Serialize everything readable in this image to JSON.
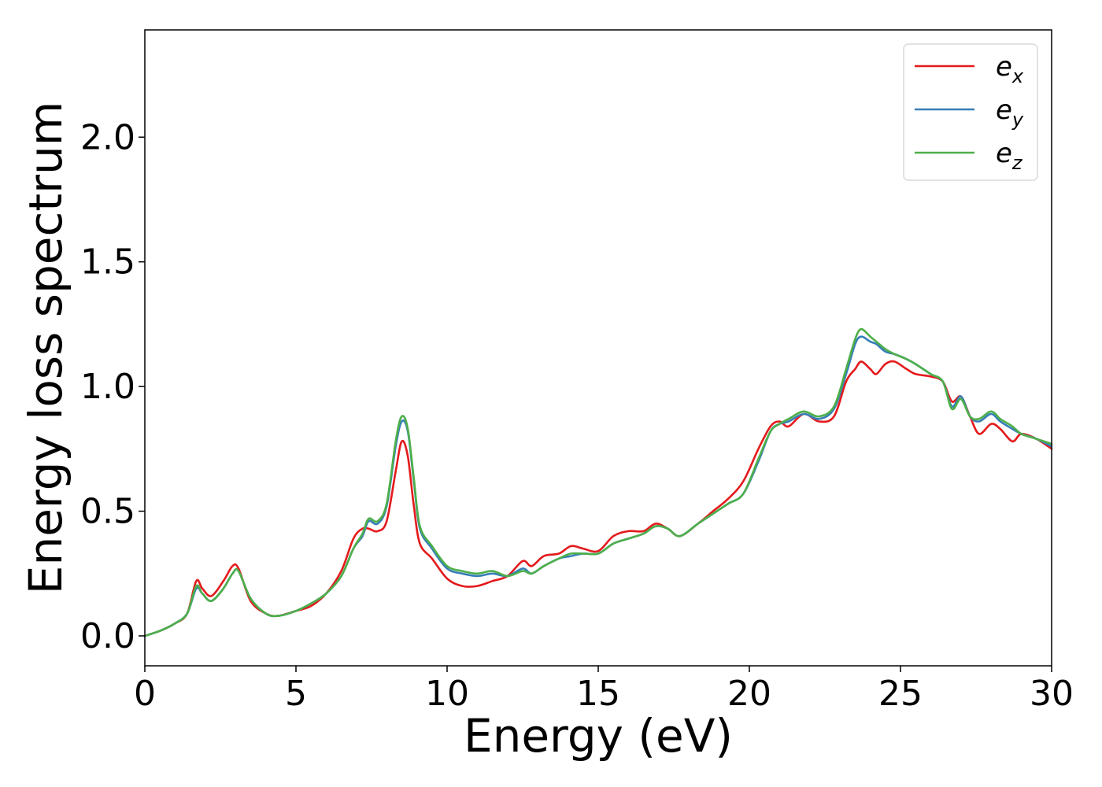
{
  "chart_data": {
    "type": "line",
    "title": "",
    "xlabel": "Energy (eV)",
    "ylabel": "Energy loss spectrum",
    "xlim": [
      0,
      30
    ],
    "ylim": [
      -0.12,
      2.43
    ],
    "xticks": [
      0,
      5,
      10,
      15,
      20,
      25,
      30
    ],
    "yticks": [
      0.0,
      0.5,
      1.0,
      1.5,
      2.0
    ],
    "xtick_labels": [
      "0",
      "5",
      "10",
      "15",
      "20",
      "25",
      "30"
    ],
    "ytick_labels": [
      "0.0",
      "0.5",
      "1.0",
      "1.5",
      "2.0"
    ],
    "grid": false,
    "legend_position": "top-right",
    "series": [
      {
        "name": "e_x",
        "label_base": "e",
        "label_sub": "x",
        "color": "#e41a1c",
        "points": [
          [
            0,
            0.0
          ],
          [
            0.5,
            0.02
          ],
          [
            1.0,
            0.05
          ],
          [
            1.4,
            0.09
          ],
          [
            1.7,
            0.22
          ],
          [
            1.9,
            0.19
          ],
          [
            2.2,
            0.16
          ],
          [
            2.6,
            0.22
          ],
          [
            2.9,
            0.28
          ],
          [
            3.1,
            0.27
          ],
          [
            3.5,
            0.14
          ],
          [
            4.0,
            0.09
          ],
          [
            4.4,
            0.08
          ],
          [
            5.0,
            0.1
          ],
          [
            5.5,
            0.12
          ],
          [
            6.0,
            0.17
          ],
          [
            6.5,
            0.26
          ],
          [
            6.9,
            0.39
          ],
          [
            7.2,
            0.43
          ],
          [
            7.4,
            0.43
          ],
          [
            7.7,
            0.42
          ],
          [
            8.0,
            0.46
          ],
          [
            8.3,
            0.66
          ],
          [
            8.5,
            0.78
          ],
          [
            8.7,
            0.72
          ],
          [
            8.9,
            0.52
          ],
          [
            9.1,
            0.37
          ],
          [
            9.5,
            0.31
          ],
          [
            10.0,
            0.23
          ],
          [
            10.5,
            0.2
          ],
          [
            11.0,
            0.2
          ],
          [
            11.5,
            0.22
          ],
          [
            12.0,
            0.24
          ],
          [
            12.5,
            0.3
          ],
          [
            12.8,
            0.28
          ],
          [
            13.2,
            0.32
          ],
          [
            13.7,
            0.33
          ],
          [
            14.1,
            0.36
          ],
          [
            14.5,
            0.35
          ],
          [
            15.0,
            0.34
          ],
          [
            15.5,
            0.4
          ],
          [
            16.0,
            0.42
          ],
          [
            16.5,
            0.42
          ],
          [
            16.9,
            0.45
          ],
          [
            17.3,
            0.43
          ],
          [
            17.7,
            0.4
          ],
          [
            18.3,
            0.45
          ],
          [
            18.8,
            0.5
          ],
          [
            19.3,
            0.55
          ],
          [
            19.8,
            0.62
          ],
          [
            20.3,
            0.75
          ],
          [
            20.7,
            0.84
          ],
          [
            21.0,
            0.86
          ],
          [
            21.3,
            0.84
          ],
          [
            21.8,
            0.89
          ],
          [
            22.3,
            0.86
          ],
          [
            22.8,
            0.88
          ],
          [
            23.2,
            1.02
          ],
          [
            23.5,
            1.07
          ],
          [
            23.7,
            1.1
          ],
          [
            24.0,
            1.07
          ],
          [
            24.2,
            1.05
          ],
          [
            24.5,
            1.09
          ],
          [
            24.8,
            1.1
          ],
          [
            25.2,
            1.07
          ],
          [
            25.5,
            1.05
          ],
          [
            26.0,
            1.04
          ],
          [
            26.4,
            1.02
          ],
          [
            26.7,
            0.94
          ],
          [
            27.0,
            0.96
          ],
          [
            27.3,
            0.88
          ],
          [
            27.6,
            0.81
          ],
          [
            28.0,
            0.85
          ],
          [
            28.3,
            0.83
          ],
          [
            28.7,
            0.78
          ],
          [
            29.0,
            0.81
          ],
          [
            29.5,
            0.79
          ],
          [
            30.0,
            0.75
          ]
        ]
      },
      {
        "name": "e_y",
        "label_base": "e",
        "label_sub": "y",
        "color": "#377eb8",
        "points": [
          [
            0,
            0.0
          ],
          [
            0.5,
            0.02
          ],
          [
            1.0,
            0.05
          ],
          [
            1.4,
            0.09
          ],
          [
            1.7,
            0.19
          ],
          [
            1.9,
            0.17
          ],
          [
            2.2,
            0.14
          ],
          [
            2.6,
            0.19
          ],
          [
            2.9,
            0.25
          ],
          [
            3.1,
            0.26
          ],
          [
            3.5,
            0.15
          ],
          [
            4.0,
            0.09
          ],
          [
            4.4,
            0.08
          ],
          [
            5.0,
            0.1
          ],
          [
            5.5,
            0.13
          ],
          [
            6.0,
            0.17
          ],
          [
            6.5,
            0.24
          ],
          [
            6.9,
            0.35
          ],
          [
            7.2,
            0.4
          ],
          [
            7.4,
            0.46
          ],
          [
            7.7,
            0.45
          ],
          [
            8.0,
            0.52
          ],
          [
            8.3,
            0.76
          ],
          [
            8.5,
            0.86
          ],
          [
            8.7,
            0.82
          ],
          [
            8.9,
            0.62
          ],
          [
            9.1,
            0.43
          ],
          [
            9.5,
            0.35
          ],
          [
            10.0,
            0.27
          ],
          [
            10.5,
            0.25
          ],
          [
            11.0,
            0.24
          ],
          [
            11.5,
            0.25
          ],
          [
            12.0,
            0.24
          ],
          [
            12.5,
            0.27
          ],
          [
            12.8,
            0.25
          ],
          [
            13.2,
            0.28
          ],
          [
            13.7,
            0.31
          ],
          [
            14.1,
            0.32
          ],
          [
            14.5,
            0.33
          ],
          [
            15.0,
            0.33
          ],
          [
            15.5,
            0.37
          ],
          [
            16.0,
            0.39
          ],
          [
            16.5,
            0.41
          ],
          [
            16.9,
            0.44
          ],
          [
            17.3,
            0.43
          ],
          [
            17.7,
            0.4
          ],
          [
            18.3,
            0.45
          ],
          [
            18.8,
            0.49
          ],
          [
            19.3,
            0.53
          ],
          [
            19.8,
            0.57
          ],
          [
            20.3,
            0.7
          ],
          [
            20.7,
            0.82
          ],
          [
            21.0,
            0.85
          ],
          [
            21.3,
            0.86
          ],
          [
            21.8,
            0.89
          ],
          [
            22.3,
            0.87
          ],
          [
            22.8,
            0.91
          ],
          [
            23.2,
            1.05
          ],
          [
            23.5,
            1.17
          ],
          [
            23.7,
            1.2
          ],
          [
            24.0,
            1.18
          ],
          [
            24.2,
            1.17
          ],
          [
            24.5,
            1.14
          ],
          [
            24.8,
            1.13
          ],
          [
            25.2,
            1.11
          ],
          [
            25.5,
            1.09
          ],
          [
            26.0,
            1.05
          ],
          [
            26.4,
            1.02
          ],
          [
            26.7,
            0.92
          ],
          [
            27.0,
            0.96
          ],
          [
            27.3,
            0.88
          ],
          [
            27.6,
            0.86
          ],
          [
            28.0,
            0.89
          ],
          [
            28.3,
            0.86
          ],
          [
            28.7,
            0.83
          ],
          [
            29.0,
            0.81
          ],
          [
            29.5,
            0.79
          ],
          [
            30.0,
            0.76
          ]
        ]
      },
      {
        "name": "e_z",
        "label_base": "e",
        "label_sub": "z",
        "color": "#4daf4a",
        "points": [
          [
            0,
            0.0
          ],
          [
            0.5,
            0.02
          ],
          [
            1.0,
            0.05
          ],
          [
            1.4,
            0.09
          ],
          [
            1.7,
            0.2
          ],
          [
            1.9,
            0.17
          ],
          [
            2.2,
            0.14
          ],
          [
            2.6,
            0.19
          ],
          [
            2.9,
            0.25
          ],
          [
            3.1,
            0.26
          ],
          [
            3.5,
            0.15
          ],
          [
            4.0,
            0.09
          ],
          [
            4.4,
            0.08
          ],
          [
            5.0,
            0.1
          ],
          [
            5.5,
            0.13
          ],
          [
            6.0,
            0.17
          ],
          [
            6.5,
            0.24
          ],
          [
            6.9,
            0.35
          ],
          [
            7.2,
            0.41
          ],
          [
            7.4,
            0.47
          ],
          [
            7.7,
            0.46
          ],
          [
            8.0,
            0.53
          ],
          [
            8.3,
            0.78
          ],
          [
            8.5,
            0.88
          ],
          [
            8.7,
            0.83
          ],
          [
            8.9,
            0.63
          ],
          [
            9.1,
            0.44
          ],
          [
            9.5,
            0.36
          ],
          [
            10.0,
            0.28
          ],
          [
            10.5,
            0.26
          ],
          [
            11.0,
            0.25
          ],
          [
            11.5,
            0.26
          ],
          [
            12.0,
            0.24
          ],
          [
            12.5,
            0.26
          ],
          [
            12.8,
            0.25
          ],
          [
            13.2,
            0.28
          ],
          [
            13.7,
            0.31
          ],
          [
            14.1,
            0.33
          ],
          [
            14.5,
            0.33
          ],
          [
            15.0,
            0.33
          ],
          [
            15.5,
            0.37
          ],
          [
            16.0,
            0.39
          ],
          [
            16.5,
            0.41
          ],
          [
            16.9,
            0.44
          ],
          [
            17.3,
            0.43
          ],
          [
            17.7,
            0.4
          ],
          [
            18.3,
            0.45
          ],
          [
            18.8,
            0.49
          ],
          [
            19.3,
            0.53
          ],
          [
            19.8,
            0.57
          ],
          [
            20.3,
            0.71
          ],
          [
            20.7,
            0.82
          ],
          [
            21.0,
            0.85
          ],
          [
            21.3,
            0.87
          ],
          [
            21.8,
            0.9
          ],
          [
            22.3,
            0.88
          ],
          [
            22.8,
            0.92
          ],
          [
            23.2,
            1.07
          ],
          [
            23.5,
            1.19
          ],
          [
            23.7,
            1.23
          ],
          [
            24.0,
            1.2
          ],
          [
            24.2,
            1.18
          ],
          [
            24.5,
            1.15
          ],
          [
            24.8,
            1.13
          ],
          [
            25.2,
            1.11
          ],
          [
            25.5,
            1.09
          ],
          [
            26.0,
            1.05
          ],
          [
            26.4,
            1.02
          ],
          [
            26.7,
            0.91
          ],
          [
            27.0,
            0.95
          ],
          [
            27.3,
            0.88
          ],
          [
            27.6,
            0.87
          ],
          [
            28.0,
            0.9
          ],
          [
            28.3,
            0.87
          ],
          [
            28.7,
            0.84
          ],
          [
            29.0,
            0.81
          ],
          [
            29.5,
            0.79
          ],
          [
            30.0,
            0.77
          ]
        ]
      }
    ]
  }
}
